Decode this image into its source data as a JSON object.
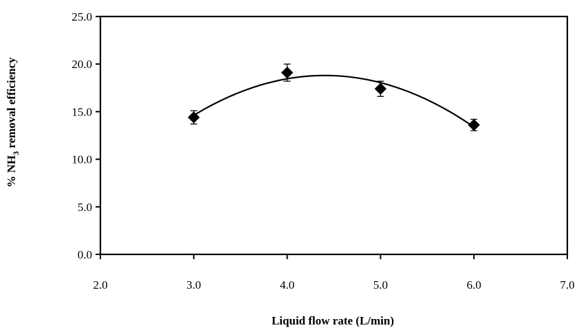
{
  "chart_data": {
    "type": "scatter",
    "xlabel": "Liquid flow rate (L/min)",
    "ylabel": {
      "prefix": "% NH",
      "subscript": "3",
      "suffix": " removal efficiency"
    },
    "xlim": [
      2.0,
      7.0
    ],
    "ylim": [
      0.0,
      25.0
    ],
    "x_ticks": [
      "2.0",
      "3.0",
      "4.0",
      "5.0",
      "6.0",
      "7.0"
    ],
    "y_ticks": [
      "0.0",
      "5.0",
      "10.0",
      "15.0",
      "20.0",
      "25.0"
    ],
    "grid": false,
    "marker": "diamond",
    "marker_color": "#000000",
    "points": [
      {
        "x": 3.0,
        "y": 14.4,
        "err": 0.7
      },
      {
        "x": 4.0,
        "y": 19.1,
        "err": 0.9
      },
      {
        "x": 5.0,
        "y": 17.4,
        "err": 0.8
      },
      {
        "x": 6.0,
        "y": 13.6,
        "err": 0.6
      }
    ],
    "trendline": {
      "type": "polynomial",
      "order": 2,
      "x_range": [
        3.0,
        6.0
      ]
    }
  }
}
